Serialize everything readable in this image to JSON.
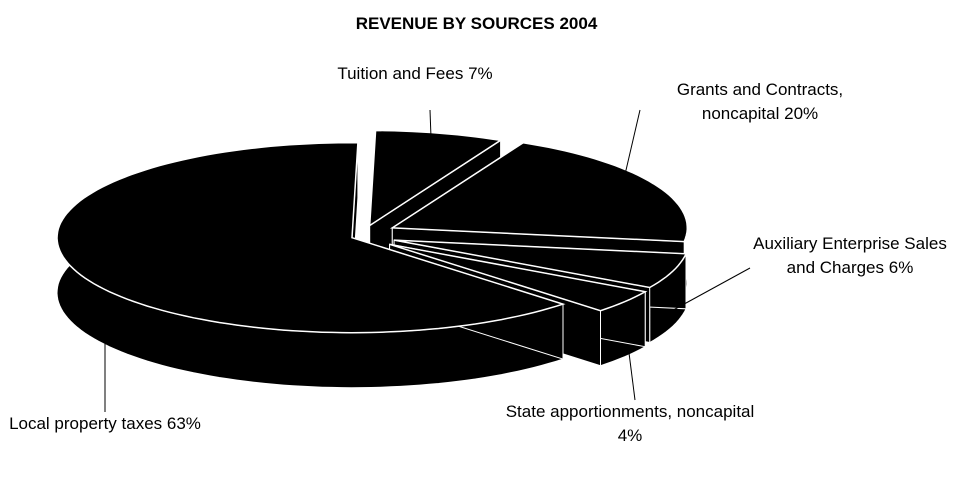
{
  "chart_data": {
    "type": "pie",
    "title": "REVENUE BY SOURCES 2004",
    "categories": [
      "Tuition and Fees",
      "Grants and Contracts, noncapital",
      "Auxiliary Enterprise Sales and Charges",
      "State apportionments, noncapital",
      "Local property taxes"
    ],
    "values": [
      7,
      20,
      6,
      4,
      63
    ],
    "value_labels": [
      "7%",
      "20%",
      "6%",
      "4%",
      "63%"
    ],
    "color": "#000000"
  }
}
